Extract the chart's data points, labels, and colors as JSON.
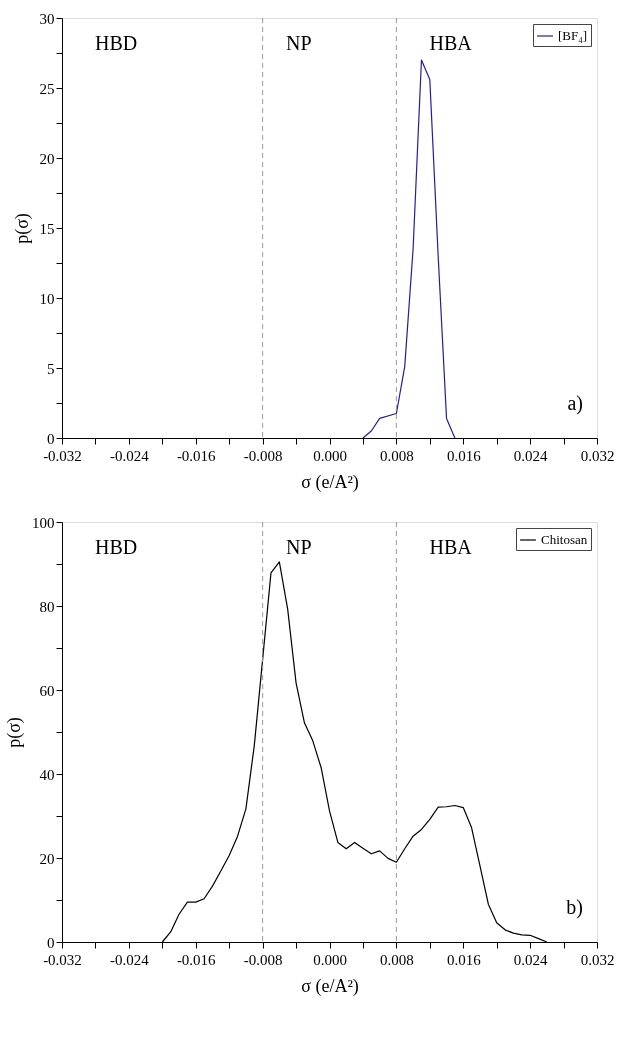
{
  "chart_data": [
    {
      "type": "line",
      "xlabel": "σ (e/A²)",
      "ylabel": "p(σ)",
      "legend": "top right",
      "grid": false,
      "series": [
        {
          "name": "[BF₄]",
          "color": "#1f1fa0",
          "x": [
            0.004,
            0.005,
            0.006,
            0.008,
            0.009,
            0.01,
            0.011,
            0.012,
            0.013,
            0.014,
            0.015
          ],
          "values": [
            0,
            0.5,
            1.4,
            1.75,
            5.1,
            13.5,
            27.0,
            25.6,
            13,
            1.4,
            0
          ]
        }
      ],
      "xlim": [
        -0.032,
        0.032
      ],
      "xticks": [
        {
          "value": -0.032,
          "label": "-0.032"
        },
        {
          "value": -0.028,
          "label": null
        },
        {
          "value": -0.024,
          "label": "-0.024"
        },
        {
          "value": -0.02,
          "label": null
        },
        {
          "value": -0.016,
          "label": "-0.016"
        },
        {
          "value": -0.012,
          "label": null
        },
        {
          "value": -0.008,
          "label": "-0.008"
        },
        {
          "value": -0.004,
          "label": null
        },
        {
          "value": 0,
          "label": "0.000"
        },
        {
          "value": 0.004,
          "label": null
        },
        {
          "value": 0.008,
          "label": "0.008"
        },
        {
          "value": 0.012,
          "label": null
        },
        {
          "value": 0.016,
          "label": "0.016"
        },
        {
          "value": 0.02,
          "label": null
        },
        {
          "value": 0.024,
          "label": "0.024"
        },
        {
          "value": 0.028,
          "label": null
        },
        {
          "value": 0.032,
          "label": "0.032"
        }
      ],
      "ylim": [
        0,
        30
      ],
      "yticks": [
        0,
        {
          "value": 2.5,
          "label": null
        },
        5,
        {
          "value": 7.5,
          "label": null
        },
        10,
        {
          "value": 12.5,
          "label": null
        },
        15,
        {
          "value": 17.5,
          "label": null
        },
        20,
        {
          "value": 22.5,
          "label": null
        },
        25,
        {
          "value": 27.5,
          "label": null
        },
        30
      ],
      "ref_lines": [
        {
          "axis": "x",
          "value": -0.008,
          "color": "#999999",
          "line_style": "dashed"
        },
        {
          "axis": "x",
          "value": 0.008,
          "color": "#999999",
          "line_style": "dashed"
        }
      ],
      "annotations": [
        "HBD",
        "NP",
        "HBA",
        "a)"
      ]
    },
    {
      "type": "line",
      "xlabel": "σ (e/A²)",
      "ylabel": "p(σ)",
      "legend": "top right",
      "grid": false,
      "series": [
        {
          "name": "Chitosan",
          "color": "#000000",
          "x": [
            -0.02,
            -0.019,
            -0.018,
            -0.017,
            -0.016,
            -0.015,
            -0.014,
            -0.013,
            -0.012,
            -0.011,
            -0.01,
            -0.009,
            -0.008,
            -0.007,
            -0.006,
            -0.005,
            -0.004,
            -0.003,
            -0.002,
            -0.001,
            0.0,
            0.001,
            0.002,
            0.003,
            0.004,
            0.005,
            0.006,
            0.007,
            0.008,
            0.009,
            0.01,
            0.011,
            0.012,
            0.013,
            0.014,
            0.015,
            0.016,
            0.017,
            0.018,
            0.019,
            0.02,
            0.021,
            0.022,
            0.023,
            0.024,
            0.025,
            0.026
          ],
          "values": [
            0,
            2.4,
            6.6,
            9.5,
            9.5,
            10.3,
            13.3,
            16.9,
            20.6,
            25.2,
            31.7,
            46.7,
            67.3,
            87.9,
            90.5,
            79.2,
            61.7,
            52.2,
            47.9,
            41.5,
            31.2,
            23.7,
            22.2,
            23.7,
            22.3,
            21.0,
            21.7,
            19.9,
            19.0,
            22.2,
            25.2,
            26.8,
            29.2,
            32.1,
            32.2,
            32.5,
            32.0,
            27.2,
            18.1,
            9.0,
            4.6,
            2.9,
            2.1,
            1.7,
            1.6,
            0.8,
            0
          ]
        }
      ],
      "xlim": [
        -0.032,
        0.032
      ],
      "xticks": [
        {
          "value": -0.032,
          "label": "-0.032"
        },
        {
          "value": -0.028,
          "label": null
        },
        {
          "value": -0.024,
          "label": "-0.024"
        },
        {
          "value": -0.02,
          "label": null
        },
        {
          "value": -0.016,
          "label": "-0.016"
        },
        {
          "value": -0.012,
          "label": null
        },
        {
          "value": -0.008,
          "label": "-0.008"
        },
        {
          "value": -0.004,
          "label": null
        },
        {
          "value": 0,
          "label": "0.000"
        },
        {
          "value": 0.004,
          "label": null
        },
        {
          "value": 0.008,
          "label": "0.008"
        },
        {
          "value": 0.012,
          "label": null
        },
        {
          "value": 0.016,
          "label": "0.016"
        },
        {
          "value": 0.02,
          "label": null
        },
        {
          "value": 0.024,
          "label": "0.024"
        },
        {
          "value": 0.028,
          "label": null
        },
        {
          "value": 0.032,
          "label": "0.032"
        }
      ],
      "ylim": [
        0,
        100
      ],
      "yticks": [
        0,
        {
          "value": 10,
          "label": null
        },
        20,
        {
          "value": 30,
          "label": null
        },
        40,
        {
          "value": 50,
          "label": null
        },
        60,
        {
          "value": 70,
          "label": null
        },
        80,
        {
          "value": 90,
          "label": null
        },
        100
      ],
      "ref_lines": [
        {
          "axis": "x",
          "value": -0.008,
          "color": "#999999",
          "line_style": "dashed"
        },
        {
          "axis": "x",
          "value": 0.008,
          "color": "#999999",
          "line_style": "dashed"
        }
      ],
      "annotations": [
        "HBD",
        "NP",
        "HBA",
        "b)"
      ]
    }
  ]
}
